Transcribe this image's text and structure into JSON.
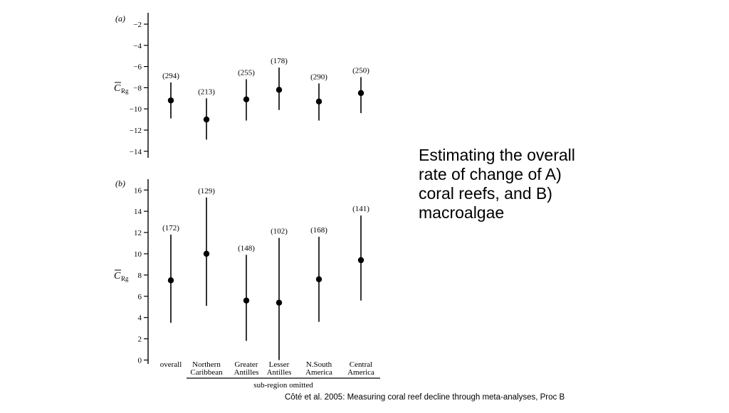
{
  "slide": {
    "caption_lines": [
      "Estimating the overall",
      "rate of change of A)",
      "coral reefs, and B)",
      "macroalgae"
    ],
    "citation": "Côté et al. 2005: Measuring coral reef decline through meta-analyses, Proc B"
  },
  "chart_data": [
    {
      "type": "scatter",
      "panel_label": "(a)",
      "ylabel": "C̄Rg",
      "ylim": [
        -14.6,
        -1.6
      ],
      "yticks": [
        -2,
        -4,
        -6,
        -8,
        -10,
        -12,
        -14
      ],
      "points": [
        {
          "label": "(294)",
          "mean": -9.2,
          "low": -10.9,
          "high": -7.5
        },
        {
          "label": "(213)",
          "mean": -11.0,
          "low": -12.9,
          "high": -9.0
        },
        {
          "label": "(255)",
          "mean": -9.1,
          "low": -11.1,
          "high": -7.2
        },
        {
          "label": "(178)",
          "mean": -8.2,
          "low": -10.1,
          "high": -6.1
        },
        {
          "label": "(290)",
          "mean": -9.3,
          "low": -11.1,
          "high": -7.6
        },
        {
          "label": "(250)",
          "mean": -8.5,
          "low": -10.4,
          "high": -7.0
        }
      ]
    },
    {
      "type": "scatter",
      "panel_label": "(b)",
      "ylabel": "C̄Rg",
      "ylim": [
        -0.5,
        17.0
      ],
      "yticks": [
        0,
        2,
        4,
        6,
        8,
        10,
        12,
        14,
        16
      ],
      "categories": [
        [
          "overall"
        ],
        [
          "Northern",
          "Caribbean"
        ],
        [
          "Greater",
          "Antilles"
        ],
        [
          "Lesser",
          "Antilles"
        ],
        [
          "N.South",
          "America"
        ],
        [
          "Central",
          "America"
        ]
      ],
      "xlabel": "sub-region omitted",
      "points": [
        {
          "label": "(172)",
          "mean": 7.5,
          "low": 3.5,
          "high": 11.8
        },
        {
          "label": "(129)",
          "mean": 10.0,
          "low": 5.1,
          "high": 15.3
        },
        {
          "label": "(148)",
          "mean": 5.6,
          "low": 1.8,
          "high": 9.9
        },
        {
          "label": "(102)",
          "mean": 5.4,
          "low": 0.0,
          "high": 11.5
        },
        {
          "label": "(168)",
          "mean": 7.6,
          "low": 3.6,
          "high": 11.6
        },
        {
          "label": "(141)",
          "mean": 9.4,
          "low": 5.6,
          "high": 13.6
        }
      ]
    }
  ]
}
